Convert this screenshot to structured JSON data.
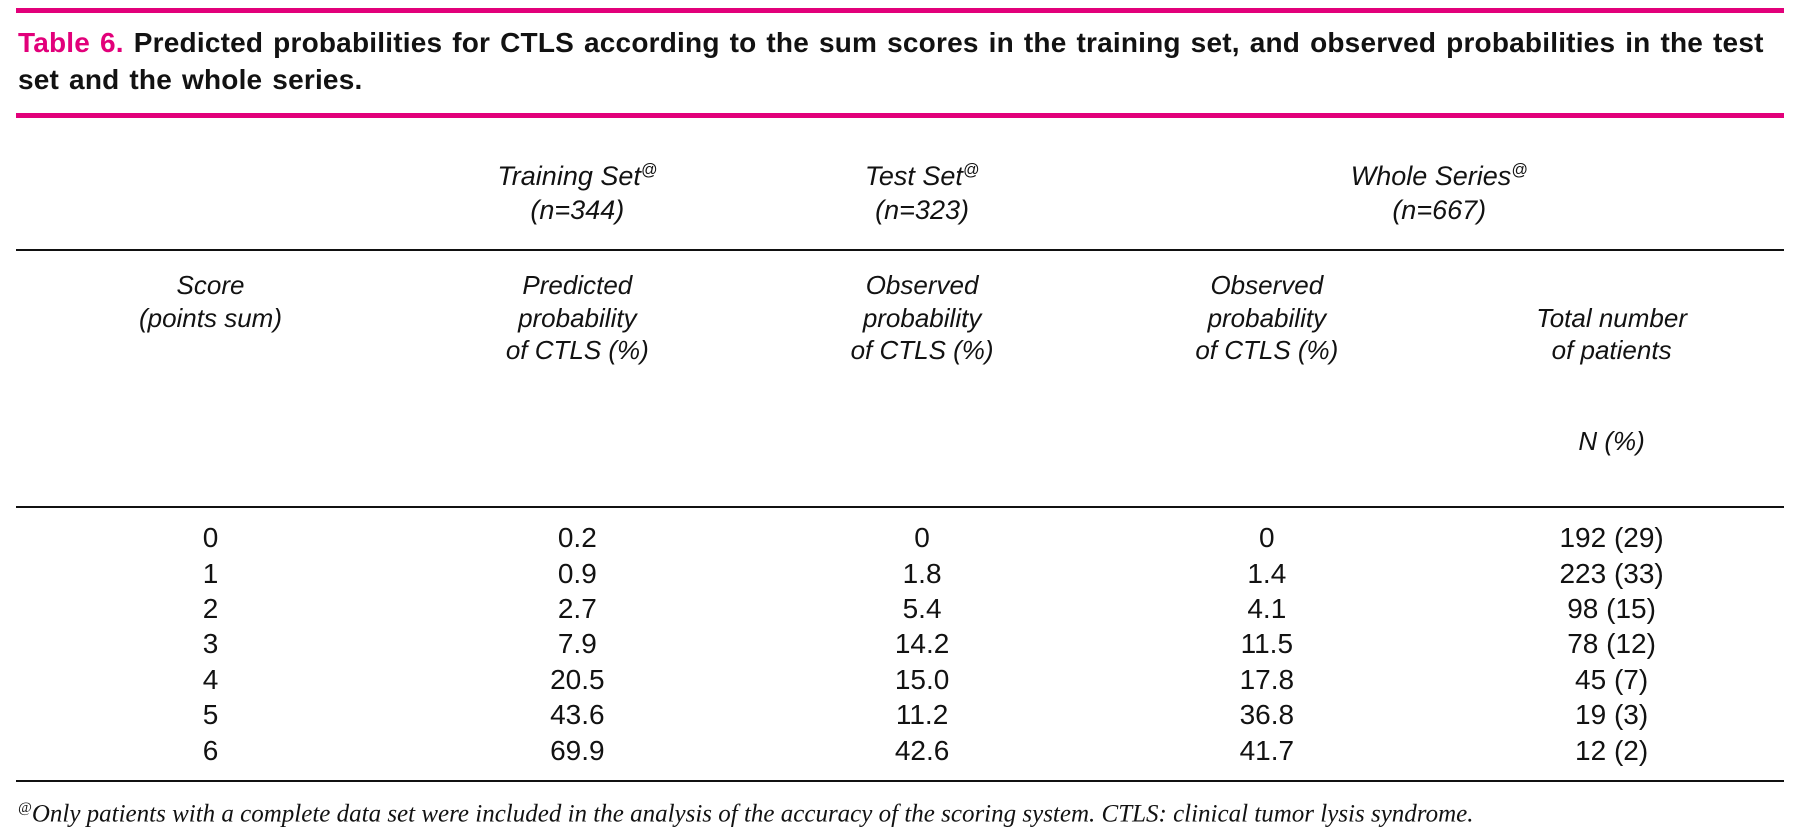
{
  "colors": {
    "accent": "#e2007a"
  },
  "title": {
    "label": "Table 6.",
    "text": "Predicted probabilities for CTLS according to the sum scores in the training set, and observed probabilities in the test set and the whole series."
  },
  "table": {
    "groups": [
      {
        "label": "Training Set",
        "sup": "@",
        "n": "(n=344)"
      },
      {
        "label": "Test Set",
        "sup": "@",
        "n": "(n=323)"
      },
      {
        "label": "Whole Series",
        "sup": "@",
        "n": "(n=667)"
      }
    ],
    "headers": [
      "Score\n(points sum)",
      "Predicted\nprobability\nof CTLS (%)",
      "Observed\nprobability\nof CTLS (%)",
      "Observed\nprobability\nof CTLS (%)",
      "Total number\nof patients"
    ],
    "last_header_sub": "N (%)",
    "rows": [
      [
        "0",
        "0.2",
        "0",
        "0",
        "192 (29)"
      ],
      [
        "1",
        "0.9",
        "1.8",
        "1.4",
        "223 (33)"
      ],
      [
        "2",
        "2.7",
        "5.4",
        "4.1",
        "98 (15)"
      ],
      [
        "3",
        "7.9",
        "14.2",
        "11.5",
        "78 (12)"
      ],
      [
        "4",
        "20.5",
        "15.0",
        "17.8",
        "45 (7)"
      ],
      [
        "5",
        "43.6",
        "11.2",
        "36.8",
        "19 (3)"
      ],
      [
        "6",
        "69.9",
        "42.6",
        "41.7",
        "12 (2)"
      ]
    ]
  },
  "footnote": {
    "sup": "@",
    "text": "Only patients with a complete data set were included in the analysis of the accuracy of the scoring system. CTLS: clinical tumor lysis syndrome."
  },
  "chart_data": {
    "type": "table",
    "title": "Predicted probabilities for CTLS according to the sum scores in the training set, and observed probabilities in the test set and the whole series.",
    "columns": [
      "Score (points sum)",
      "Training Set (n=344) Predicted probability of CTLS (%)",
      "Test Set (n=323) Observed probability of CTLS (%)",
      "Whole Series (n=667) Observed probability of CTLS (%)",
      "Whole Series (n=667) Total number of patients N (%)"
    ],
    "rows": [
      [
        "0",
        "0.2",
        "0",
        "0",
        "192 (29)"
      ],
      [
        "1",
        "0.9",
        "1.8",
        "1.4",
        "223 (33)"
      ],
      [
        "2",
        "2.7",
        "5.4",
        "4.1",
        "98 (15)"
      ],
      [
        "3",
        "7.9",
        "14.2",
        "11.5",
        "78 (12)"
      ],
      [
        "4",
        "20.5",
        "15.0",
        "17.8",
        "45 (7)"
      ],
      [
        "5",
        "43.6",
        "11.2",
        "36.8",
        "19 (3)"
      ],
      [
        "6",
        "69.9",
        "42.6",
        "41.7",
        "12 (2)"
      ]
    ]
  }
}
